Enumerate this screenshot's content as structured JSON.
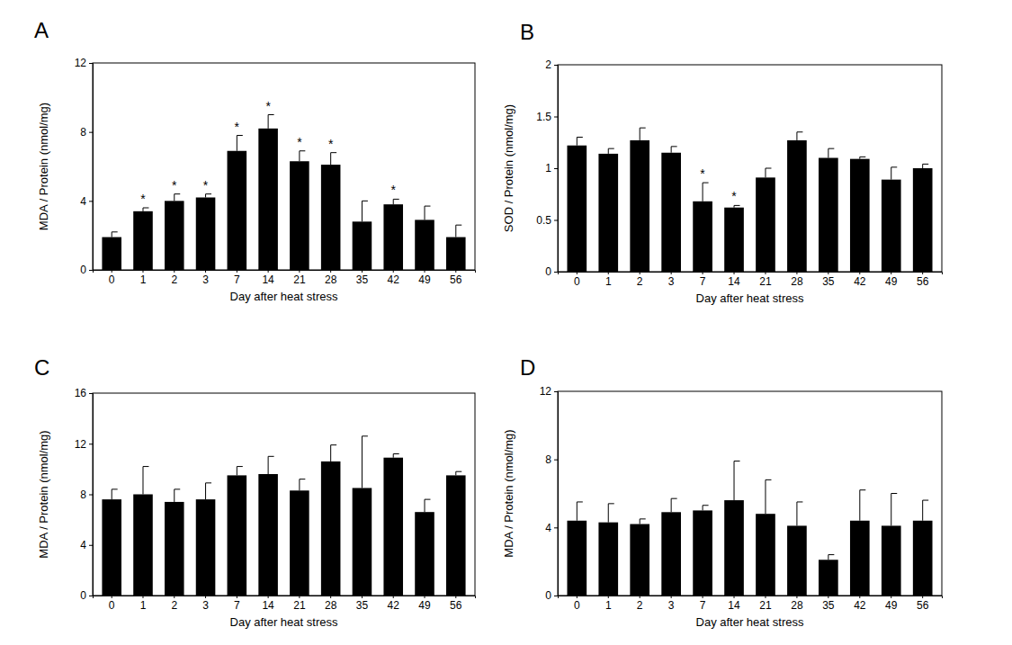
{
  "chart_data": [
    {
      "type": "bar",
      "title": "A",
      "x_label": "Day after heat stress",
      "y_label": "MDA / Protein (nmol/mg)",
      "categories": [
        "0",
        "1",
        "2",
        "3",
        "7",
        "14",
        "21",
        "28",
        "35",
        "42",
        "49",
        "56"
      ],
      "values": [
        1.9,
        3.4,
        4.0,
        4.2,
        6.9,
        8.2,
        6.3,
        6.1,
        2.8,
        3.8,
        2.9,
        1.9
      ],
      "errors": [
        0.3,
        0.2,
        0.4,
        0.2,
        0.9,
        0.8,
        0.6,
        0.7,
        1.2,
        0.3,
        0.8,
        0.7
      ],
      "annotations": [
        null,
        "*",
        "*",
        "*",
        "*",
        "*",
        "*",
        "*",
        null,
        "*",
        null,
        null
      ],
      "color": "#000000",
      "ylim": [
        0,
        12
      ],
      "yticks": [
        0,
        4,
        8,
        12
      ]
    },
    {
      "type": "bar",
      "title": "B",
      "x_label": "Day after heat stress",
      "y_label": "SOD / Protein (nmol/mg)",
      "categories": [
        "0",
        "1",
        "2",
        "3",
        "7",
        "14",
        "21",
        "28",
        "35",
        "42",
        "49",
        "56"
      ],
      "values": [
        1.22,
        1.14,
        1.27,
        1.15,
        0.68,
        0.62,
        0.91,
        1.27,
        1.1,
        1.09,
        0.89,
        1.0
      ],
      "errors": [
        0.08,
        0.05,
        0.12,
        0.06,
        0.18,
        0.02,
        0.09,
        0.08,
        0.09,
        0.02,
        0.12,
        0.04
      ],
      "annotations": [
        null,
        null,
        null,
        null,
        "*",
        "*",
        null,
        null,
        null,
        null,
        null,
        null
      ],
      "color": "#000000",
      "ylim": [
        0,
        2
      ],
      "yticks": [
        0,
        0.5,
        1,
        1.5,
        2
      ]
    },
    {
      "type": "bar",
      "title": "C",
      "x_label": "Day after heat stress",
      "y_label": "MDA / Protein (nmol/mg)",
      "categories": [
        "0",
        "1",
        "2",
        "3",
        "7",
        "14",
        "21",
        "28",
        "35",
        "42",
        "49",
        "56"
      ],
      "values": [
        7.6,
        8.0,
        7.4,
        7.6,
        9.5,
        9.6,
        8.3,
        10.6,
        8.5,
        10.9,
        6.6,
        9.5
      ],
      "errors": [
        0.8,
        2.2,
        1.0,
        1.3,
        0.7,
        1.4,
        0.9,
        1.3,
        4.1,
        0.3,
        1.0,
        0.3
      ],
      "color": "#000000",
      "ylim": [
        0,
        16
      ],
      "yticks": [
        0,
        4,
        8,
        12,
        16
      ]
    },
    {
      "type": "bar",
      "title": "D",
      "x_label": "Day after heat stress",
      "y_label": "MDA / Protein (nmol/mg)",
      "categories": [
        "0",
        "1",
        "2",
        "3",
        "7",
        "14",
        "21",
        "28",
        "35",
        "42",
        "49",
        "56"
      ],
      "values": [
        4.4,
        4.3,
        4.2,
        4.9,
        5.0,
        5.6,
        4.8,
        4.1,
        2.1,
        4.4,
        4.1,
        4.4
      ],
      "errors": [
        1.1,
        1.1,
        0.3,
        0.8,
        0.3,
        2.3,
        2.0,
        1.4,
        0.3,
        1.8,
        1.9,
        1.2
      ],
      "color": "#000000",
      "ylim": [
        0,
        12
      ],
      "yticks": [
        0,
        4,
        8,
        12
      ]
    }
  ]
}
